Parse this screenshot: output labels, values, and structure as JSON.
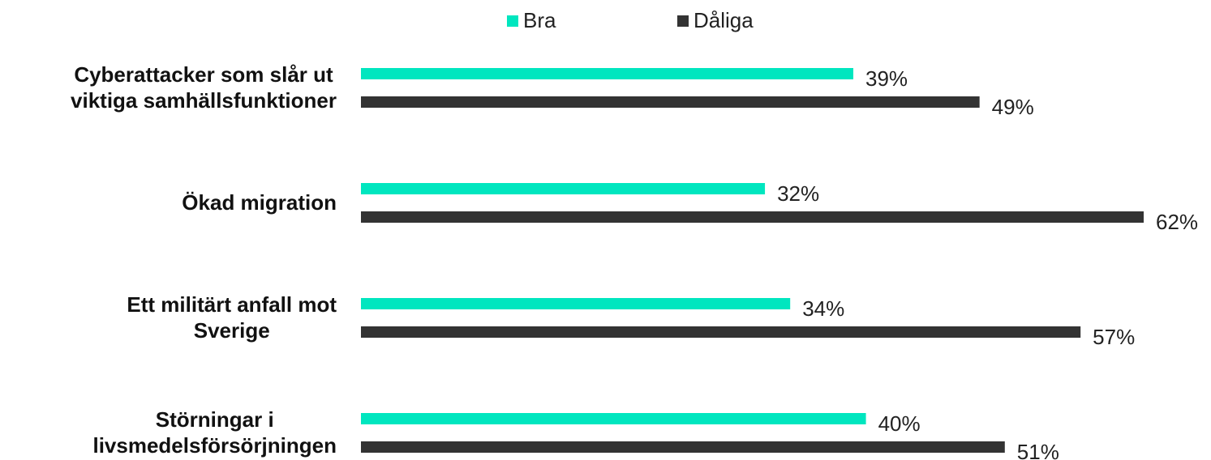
{
  "chart_data": {
    "type": "bar",
    "orientation": "horizontal",
    "categories": [
      "Cyberattacker som slår ut\nviktiga samhällsfunktioner",
      "Ökad migration",
      "Ett militärt anfall mot\nSverige",
      "Störningar i\nlivsmedelsförsörjningen"
    ],
    "series": [
      {
        "name": "Bra",
        "color": "#00e6bf",
        "values": [
          39,
          32,
          34,
          40
        ],
        "value_labels": [
          "39%",
          "32%",
          "34%",
          "40%"
        ]
      },
      {
        "name": "Dåliga",
        "color": "#333333",
        "values": [
          49,
          62,
          57,
          51
        ],
        "value_labels": [
          "49%",
          "62%",
          "57%",
          "51%"
        ]
      }
    ],
    "legend": "top"
  }
}
